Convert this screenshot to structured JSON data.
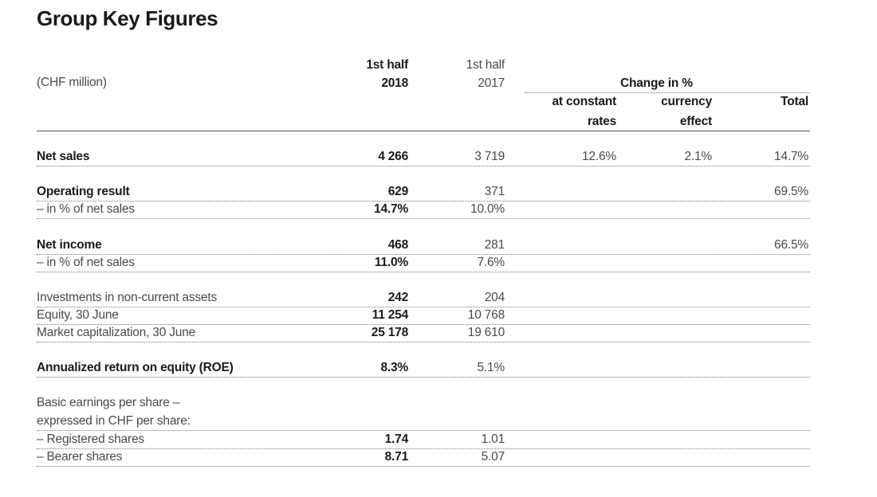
{
  "title": "Group Key Figures",
  "header": {
    "unit": "(CHF million)",
    "col_2018_line1": "1st half",
    "col_2018_line2": "2018",
    "col_2017_line1": "1st half",
    "col_2017_line2": "2017",
    "change_group": "Change in %",
    "constant_line1": "at constant",
    "constant_line2": "rates",
    "currency_line1": "currency",
    "currency_line2": "effect",
    "total": "Total"
  },
  "rows": {
    "net_sales": {
      "label": "Net sales",
      "v2018": "4 266",
      "v2017": "3 719",
      "constant": "12.6%",
      "currency": "2.1%",
      "total": "14.7%"
    },
    "operating_result": {
      "label": "Operating result",
      "v2018": "629",
      "v2017": "371",
      "total": "69.5%"
    },
    "operating_pct": {
      "label": "– in % of net sales",
      "v2018": "14.7%",
      "v2017": "10.0%"
    },
    "net_income": {
      "label": "Net income",
      "v2018": "468",
      "v2017": "281",
      "total": "66.5%"
    },
    "net_income_pct": {
      "label": "– in % of net sales",
      "v2018": "11.0%",
      "v2017": "7.6%"
    },
    "investments": {
      "label": "Investments in non-current assets",
      "v2018": "242",
      "v2017": "204"
    },
    "equity": {
      "label": "Equity, 30 June",
      "v2018": "11 254",
      "v2017": "10 768"
    },
    "market_cap": {
      "label": "Market capitalization, 30 June",
      "v2018": "25 178",
      "v2017": "19 610"
    },
    "roe": {
      "label": "Annualized return on equity (ROE)",
      "v2018": "8.3%",
      "v2017": "5.1%"
    },
    "eps_heading_line1": "Basic earnings per share –",
    "eps_heading_line2": "expressed in CHF per share:",
    "registered": {
      "label": "– Registered shares",
      "v2018": "1.74",
      "v2017": "1.01"
    },
    "bearer": {
      "label": "– Bearer shares",
      "v2018": "8.71",
      "v2017": "5.07"
    }
  }
}
